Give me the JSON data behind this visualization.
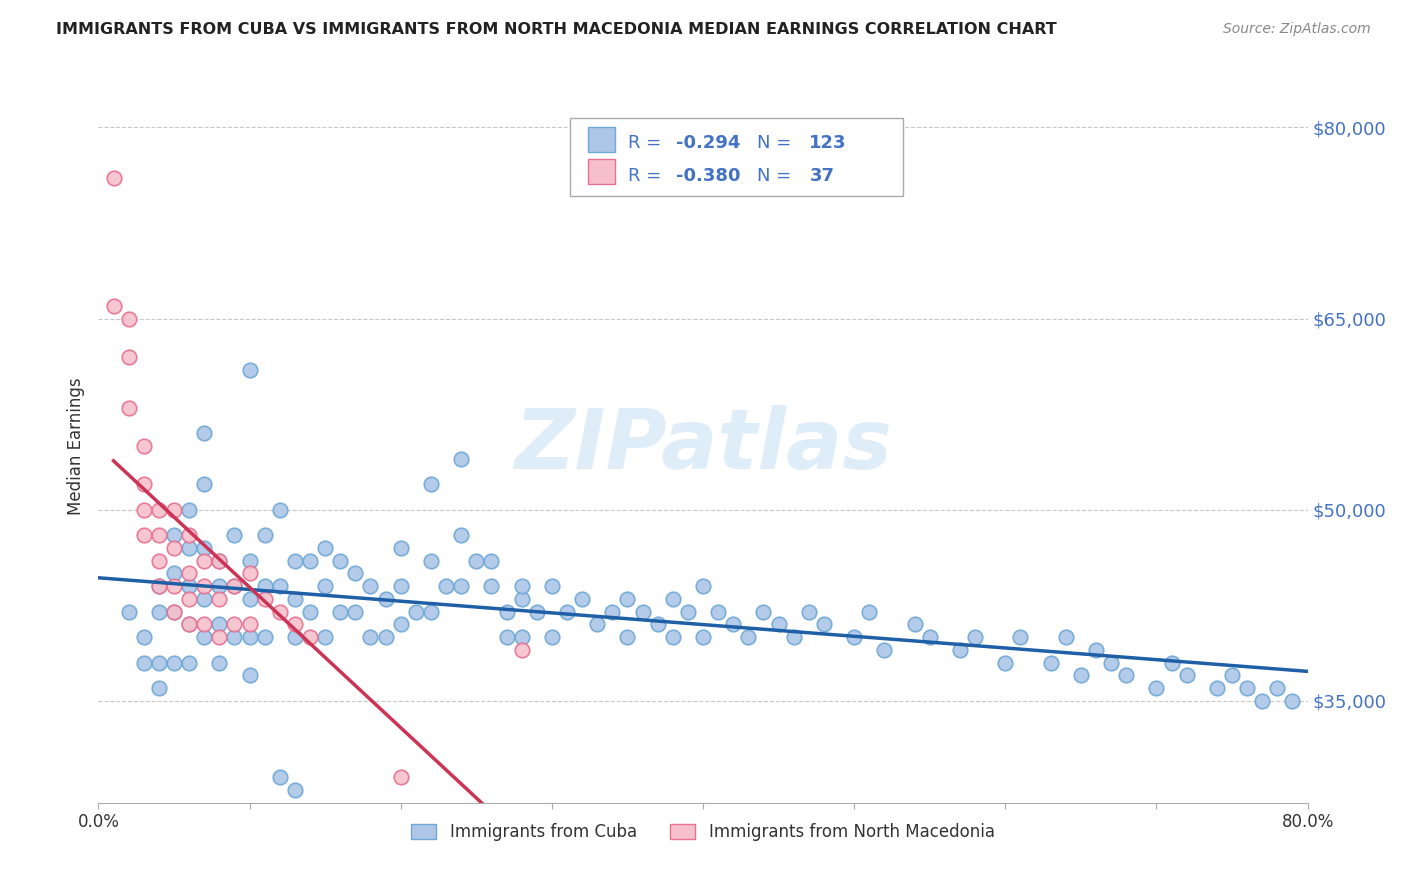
{
  "title": "IMMIGRANTS FROM CUBA VS IMMIGRANTS FROM NORTH MACEDONIA MEDIAN EARNINGS CORRELATION CHART",
  "source": "Source: ZipAtlas.com",
  "ylabel": "Median Earnings",
  "xlim": [
    0.0,
    0.8
  ],
  "ylim": [
    27000,
    83000
  ],
  "yticks": [
    35000,
    50000,
    65000,
    80000
  ],
  "ytick_labels": [
    "$35,000",
    "$50,000",
    "$65,000",
    "$80,000"
  ],
  "xticks": [
    0.0,
    0.1,
    0.2,
    0.3,
    0.4,
    0.5,
    0.6,
    0.7,
    0.8
  ],
  "xtick_labels": [
    "0.0%",
    "",
    "",
    "",
    "",
    "",
    "",
    "",
    "80.0%"
  ],
  "cuba_color": "#adc6e8",
  "cuba_edge_color": "#6fa8d6",
  "macedonia_color": "#f5c0cc",
  "macedonia_edge_color": "#e87090",
  "trend_cuba_color": "#1f5fa6",
  "trend_macedonia_color": "#cc3355",
  "R_cuba": "-0.294",
  "N_cuba": "123",
  "R_macedonia": "-0.380",
  "N_macedonia": "37",
  "legend_label_cuba": "Immigrants from Cuba",
  "legend_label_macedonia": "Immigrants from North Macedonia",
  "watermark_text": "ZIPatlas",
  "background_color": "#ffffff",
  "grid_color": "#c8c8c8",
  "title_color": "#222222",
  "axis_label_color": "#333333",
  "ytick_color": "#4472c4",
  "source_color": "#888888",
  "legend_text_color": "#4472c4",
  "legend_R_color": "#4472c4",
  "legend_N_color": "#4472c4",
  "cuba_points_x": [
    0.02,
    0.03,
    0.03,
    0.04,
    0.04,
    0.04,
    0.04,
    0.05,
    0.05,
    0.05,
    0.05,
    0.06,
    0.06,
    0.06,
    0.06,
    0.06,
    0.07,
    0.07,
    0.07,
    0.07,
    0.07,
    0.08,
    0.08,
    0.08,
    0.08,
    0.09,
    0.09,
    0.09,
    0.1,
    0.1,
    0.1,
    0.1,
    0.11,
    0.11,
    0.11,
    0.12,
    0.12,
    0.13,
    0.13,
    0.13,
    0.14,
    0.14,
    0.15,
    0.15,
    0.15,
    0.16,
    0.16,
    0.17,
    0.17,
    0.18,
    0.18,
    0.19,
    0.19,
    0.2,
    0.2,
    0.2,
    0.21,
    0.22,
    0.22,
    0.23,
    0.24,
    0.24,
    0.25,
    0.26,
    0.27,
    0.27,
    0.28,
    0.28,
    0.29,
    0.3,
    0.3,
    0.31,
    0.32,
    0.33,
    0.34,
    0.35,
    0.35,
    0.36,
    0.37,
    0.38,
    0.38,
    0.39,
    0.4,
    0.4,
    0.41,
    0.42,
    0.43,
    0.44,
    0.45,
    0.46,
    0.47,
    0.48,
    0.5,
    0.51,
    0.52,
    0.54,
    0.55,
    0.57,
    0.58,
    0.6,
    0.61,
    0.63,
    0.64,
    0.65,
    0.66,
    0.67,
    0.68,
    0.7,
    0.71,
    0.72,
    0.74,
    0.75,
    0.76,
    0.77,
    0.78,
    0.79,
    0.12,
    0.13,
    0.1,
    0.22,
    0.24,
    0.26,
    0.28
  ],
  "cuba_points_y": [
    42000,
    40000,
    38000,
    44000,
    42000,
    38000,
    36000,
    48000,
    45000,
    42000,
    38000,
    50000,
    47000,
    44000,
    41000,
    38000,
    56000,
    52000,
    47000,
    43000,
    40000,
    46000,
    44000,
    41000,
    38000,
    48000,
    44000,
    40000,
    46000,
    43000,
    40000,
    37000,
    48000,
    44000,
    40000,
    50000,
    44000,
    46000,
    43000,
    40000,
    46000,
    42000,
    47000,
    44000,
    40000,
    46000,
    42000,
    45000,
    42000,
    44000,
    40000,
    43000,
    40000,
    47000,
    44000,
    41000,
    42000,
    46000,
    42000,
    44000,
    54000,
    44000,
    46000,
    44000,
    42000,
    40000,
    43000,
    40000,
    42000,
    44000,
    40000,
    42000,
    43000,
    41000,
    42000,
    43000,
    40000,
    42000,
    41000,
    43000,
    40000,
    42000,
    44000,
    40000,
    42000,
    41000,
    40000,
    42000,
    41000,
    40000,
    42000,
    41000,
    40000,
    42000,
    39000,
    41000,
    40000,
    39000,
    40000,
    38000,
    40000,
    38000,
    40000,
    37000,
    39000,
    38000,
    37000,
    36000,
    38000,
    37000,
    36000,
    37000,
    36000,
    35000,
    36000,
    35000,
    29000,
    28000,
    61000,
    52000,
    48000,
    46000,
    44000
  ],
  "macedonia_points_x": [
    0.01,
    0.01,
    0.02,
    0.02,
    0.02,
    0.03,
    0.03,
    0.03,
    0.03,
    0.04,
    0.04,
    0.04,
    0.04,
    0.05,
    0.05,
    0.05,
    0.05,
    0.06,
    0.06,
    0.06,
    0.06,
    0.07,
    0.07,
    0.07,
    0.08,
    0.08,
    0.08,
    0.09,
    0.09,
    0.1,
    0.1,
    0.11,
    0.12,
    0.13,
    0.14,
    0.2,
    0.28
  ],
  "macedonia_points_y": [
    76000,
    66000,
    65000,
    62000,
    58000,
    55000,
    52000,
    50000,
    48000,
    50000,
    48000,
    46000,
    44000,
    50000,
    47000,
    44000,
    42000,
    48000,
    45000,
    43000,
    41000,
    46000,
    44000,
    41000,
    46000,
    43000,
    40000,
    44000,
    41000,
    45000,
    41000,
    43000,
    42000,
    41000,
    40000,
    29000,
    39000
  ]
}
